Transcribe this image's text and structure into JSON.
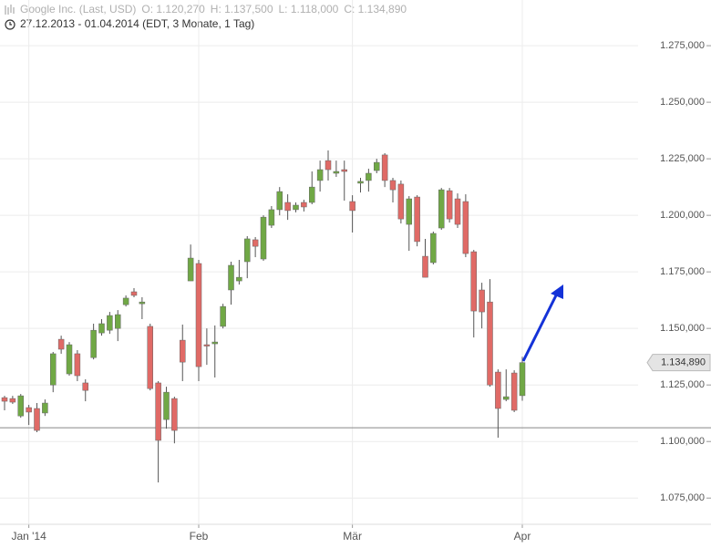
{
  "header": {
    "name": "Google Inc. (Last, USD)",
    "open": "O: 1.120,270",
    "high": "H: 1.137,500",
    "low": "L: 1.118,000",
    "close": "C: 1.134,890",
    "range": "27.12.2013 - 01.04.2014 (EDT, 3 Monate, 1 Tag)"
  },
  "chart_data": {
    "type": "candlestick",
    "categories": [
      null,
      null,
      null,
      "Jan '14",
      null,
      null,
      null,
      null,
      null,
      null,
      null,
      null,
      null,
      null,
      null,
      null,
      null,
      null,
      null,
      null,
      null,
      null,
      null,
      null,
      "Feb",
      null,
      null,
      null,
      null,
      null,
      null,
      null,
      null,
      null,
      null,
      null,
      null,
      null,
      null,
      null,
      null,
      null,
      null,
      "Mär",
      null,
      null,
      null,
      null,
      null,
      null,
      null,
      null,
      null,
      null,
      null,
      null,
      null,
      null,
      null,
      null,
      null,
      null,
      null,
      null,
      "Apr"
    ],
    "open": [
      1119400,
      1119000,
      1111300,
      1115000,
      1114600,
      1112600,
      1125000,
      1145200,
      1129900,
      1138800,
      1125900,
      1137100,
      1148000,
      1149200,
      1150000,
      1160500,
      1166200,
      1160900,
      1150900,
      1125900,
      1109700,
      1119000,
      1144800,
      1171000,
      1178700,
      1142800,
      1143200,
      1150900,
      1167000,
      1171000,
      1179500,
      1189200,
      1180700,
      1195600,
      1202500,
      1205700,
      1202500,
      1205700,
      1205700,
      1215400,
      1224200,
      1218600,
      1220200,
      1206100,
      1214200,
      1215400,
      1219800,
      1226700,
      1215400,
      1213800,
      1196000,
      1208100,
      1181900,
      1179100,
      1194400,
      1210900,
      1207300,
      1206100,
      1183900,
      1167000,
      1161700,
      1130700,
      1118600,
      1130300,
      1120270
    ],
    "high": [
      1120200,
      1120200,
      1121000,
      1116200,
      1117000,
      1118600,
      1139600,
      1146800,
      1144000,
      1140400,
      1127500,
      1152100,
      1154100,
      1157300,
      1158100,
      1164600,
      1167800,
      1163800,
      1152100,
      1126700,
      1124200,
      1119800,
      1151700,
      1187100,
      1180300,
      1150000,
      1151300,
      1160900,
      1179500,
      1180300,
      1190800,
      1190400,
      1200000,
      1204100,
      1212500,
      1209300,
      1205700,
      1206900,
      1219400,
      1224200,
      1228700,
      1224200,
      1224200,
      1208900,
      1216600,
      1220600,
      1225000,
      1227500,
      1216600,
      1215400,
      1208500,
      1208900,
      1189600,
      1192800,
      1212100,
      1212100,
      1209700,
      1209300,
      1184700,
      1170200,
      1171800,
      1131900,
      1131900,
      1131500,
      1137500
    ],
    "low": [
      1113800,
      1116600,
      1110500,
      1107300,
      1104100,
      1111300,
      1121800,
      1138800,
      1129100,
      1126700,
      1117800,
      1136300,
      1146800,
      1147600,
      1144400,
      1159700,
      1163800,
      1154100,
      1122600,
      1081900,
      1105700,
      1099200,
      1126700,
      1171000,
      1126700,
      1133900,
      1128300,
      1150000,
      1160500,
      1169400,
      1172200,
      1181500,
      1179900,
      1194400,
      1200000,
      1198000,
      1201300,
      1201700,
      1204900,
      1210500,
      1215400,
      1217000,
      1206500,
      1192400,
      1210100,
      1210500,
      1218600,
      1212500,
      1205700,
      1196400,
      1184300,
      1186300,
      1172600,
      1178300,
      1193600,
      1196800,
      1194400,
      1181500,
      1146000,
      1150000,
      1124200,
      1101700,
      1117800,
      1113000,
      1118000
    ],
    "close": [
      1117800,
      1117400,
      1120200,
      1113000,
      1104900,
      1117000,
      1138800,
      1140800,
      1142800,
      1129100,
      1122600,
      1149200,
      1152100,
      1155700,
      1156100,
      1163400,
      1164600,
      1161700,
      1123400,
      1100500,
      1121800,
      1104900,
      1135100,
      1181100,
      1133100,
      1142400,
      1144000,
      1159700,
      1177900,
      1172600,
      1189600,
      1186300,
      1199200,
      1202500,
      1210500,
      1202100,
      1204500,
      1203700,
      1212500,
      1220200,
      1220200,
      1219400,
      1219400,
      1202100,
      1215000,
      1218600,
      1223400,
      1215400,
      1211300,
      1198400,
      1207300,
      1188400,
      1172600,
      1192000,
      1211300,
      1198400,
      1196000,
      1183100,
      1157700,
      1157300,
      1125000,
      1114600,
      1119800,
      1113800,
      1134890
    ],
    "up_color": "#70a845",
    "down_color": "#e06a66",
    "ylim": [
      1063400,
      1295200
    ],
    "yticks": [
      {
        "value": 1075000,
        "label": "1.075,000"
      },
      {
        "value": 1100000,
        "label": "1.100,000"
      },
      {
        "value": 1125000,
        "label": "1.125,000"
      },
      {
        "value": 1150000,
        "label": "1.150,000"
      },
      {
        "value": 1175000,
        "label": "1.175,000"
      },
      {
        "value": 1200000,
        "label": "1.200,000"
      },
      {
        "value": 1225000,
        "label": "1.225,000"
      },
      {
        "value": 1250000,
        "label": "1.250,000"
      },
      {
        "value": 1275000,
        "label": "1.275,000"
      }
    ],
    "grid": true,
    "hline": 1106100,
    "last_price": {
      "value": 1134890,
      "label": "1.134,890"
    }
  }
}
